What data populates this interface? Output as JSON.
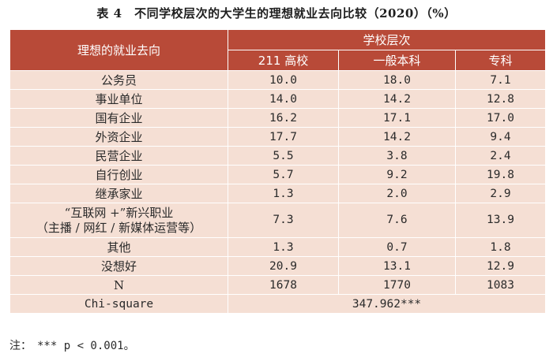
{
  "title": "表 4　不同学校层次的大学生的理想就业去向比较（2020）（%）",
  "header": {
    "row_label": "理想的就业去向",
    "group_label": "学校层次",
    "columns": [
      "211 高校",
      "一般本科",
      "专科"
    ]
  },
  "rows": [
    {
      "label": "公务员",
      "values": [
        "10.0",
        "18.0",
        "7.1"
      ]
    },
    {
      "label": "事业单位",
      "values": [
        "14.0",
        "14.2",
        "12.8"
      ]
    },
    {
      "label": "国有企业",
      "values": [
        "16.2",
        "17.1",
        "17.0"
      ]
    },
    {
      "label": "外资企业",
      "values": [
        "17.7",
        "14.2",
        "9.4"
      ]
    },
    {
      "label": "民营企业",
      "values": [
        "5.5",
        "3.8",
        "2.4"
      ]
    },
    {
      "label": "自行创业",
      "values": [
        "5.7",
        "9.2",
        "19.8"
      ]
    },
    {
      "label": "继承家业",
      "values": [
        "1.3",
        "2.0",
        "2.9"
      ]
    },
    {
      "label": "“互联网 +”新兴职业",
      "label2": "（主播 / 网红 / 新媒体运营等）",
      "values": [
        "7.3",
        "7.6",
        "13.9"
      ]
    },
    {
      "label": "其他",
      "values": [
        "1.3",
        "0.7",
        "1.8"
      ]
    },
    {
      "label": "没想好",
      "values": [
        "20.9",
        "13.1",
        "12.9"
      ]
    },
    {
      "label": "N",
      "values": [
        "1678",
        "1770",
        "1083"
      ]
    }
  ],
  "chi_square": {
    "label": "Chi-square",
    "value": "347.962***"
  },
  "note": "注：　*** p < 0.001。"
}
